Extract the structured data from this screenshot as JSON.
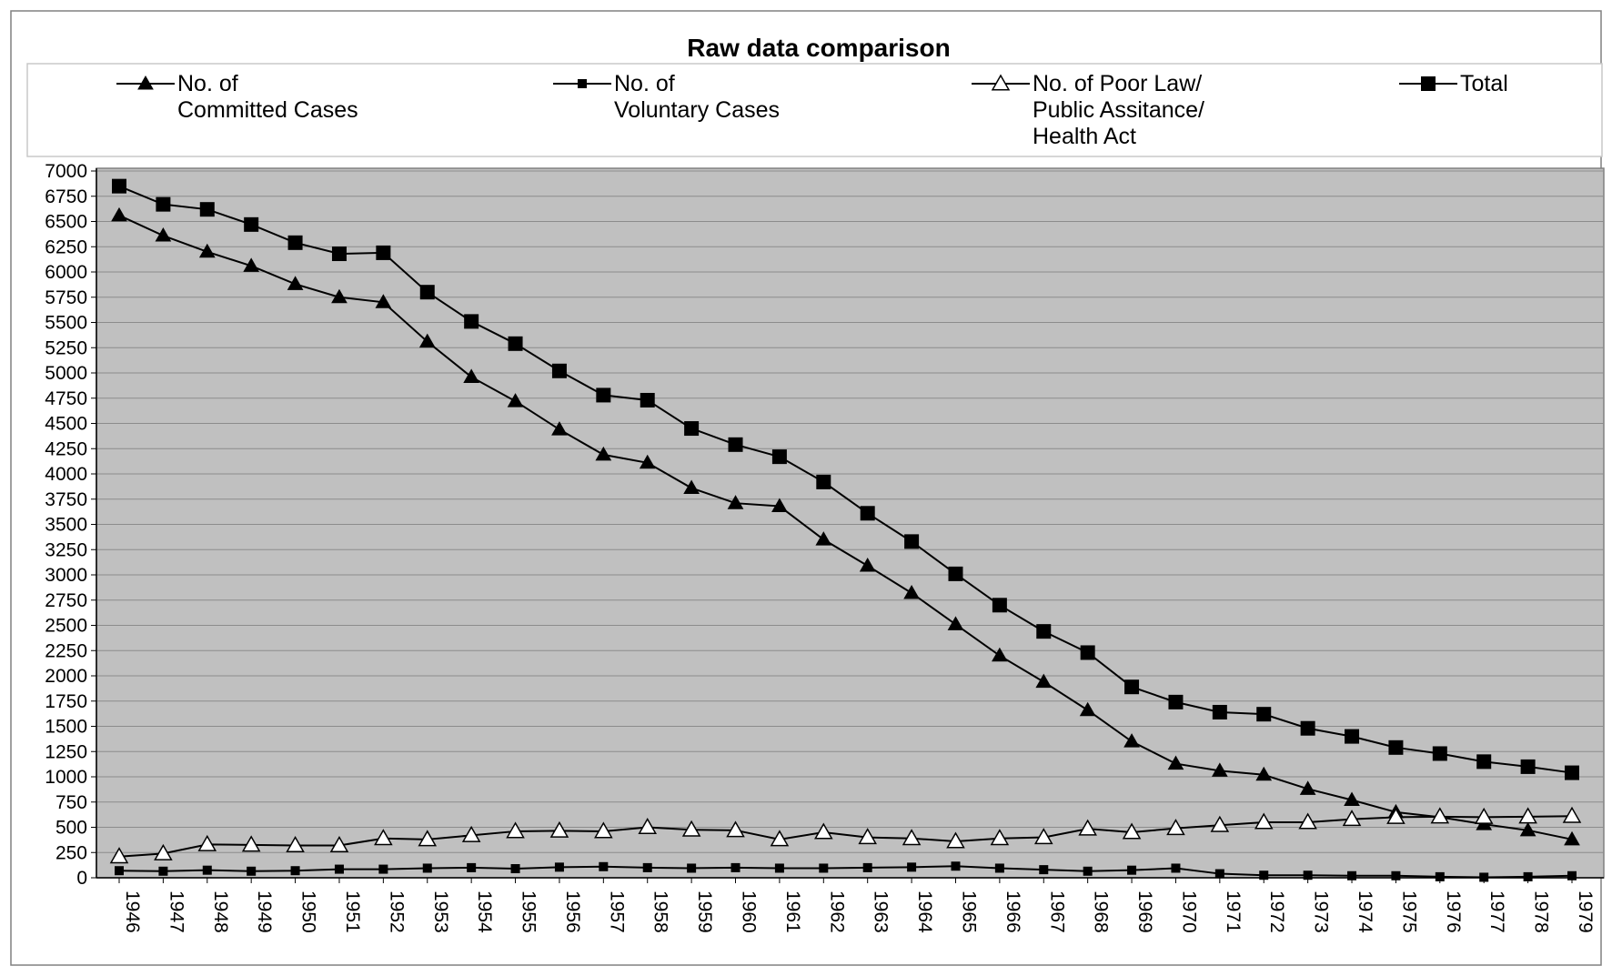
{
  "chart_data": {
    "type": "line",
    "title": "Raw data comparison",
    "xlabel": "",
    "ylabel": "",
    "ylim": [
      0,
      7000
    ],
    "ytick_step": 250,
    "grid": true,
    "legend_position": "top",
    "background_color": "#c0c0c0",
    "categories": [
      "1946",
      "1947",
      "1948",
      "1949",
      "1950",
      "1951",
      "1952",
      "1953",
      "1954",
      "1955",
      "1956",
      "1957",
      "1958",
      "1959",
      "1960",
      "1961",
      "1962",
      "1963",
      "1964",
      "1965",
      "1966",
      "1967",
      "1968",
      "1969",
      "1970",
      "1971",
      "1972",
      "1973",
      "1974",
      "1975",
      "1976",
      "1977",
      "1978",
      "1979"
    ],
    "series": [
      {
        "name_lines": [
          "No. of",
          "Committed Cases"
        ],
        "marker": "triangle-filled",
        "values": [
          6560,
          6360,
          6200,
          6060,
          5880,
          5750,
          5700,
          5310,
          4960,
          4720,
          4440,
          4190,
          4110,
          3860,
          3710,
          3680,
          3350,
          3090,
          2820,
          2510,
          2200,
          1940,
          1660,
          1350,
          1130,
          1060,
          1020,
          880,
          770,
          650,
          600,
          530,
          470,
          380
        ]
      },
      {
        "name_lines": [
          "No. of",
          "Voluntary Cases"
        ],
        "marker": "square-small",
        "values": [
          70,
          65,
          75,
          65,
          70,
          85,
          85,
          95,
          100,
          90,
          105,
          110,
          100,
          95,
          100,
          95,
          95,
          100,
          105,
          115,
          95,
          80,
          65,
          75,
          95,
          40,
          25,
          25,
          20,
          20,
          10,
          5,
          10,
          20
        ]
      },
      {
        "name_lines": [
          "No. of Poor Law/",
          "Public Assitance/",
          "Health Act"
        ],
        "marker": "triangle-hollow",
        "values": [
          210,
          240,
          330,
          325,
          320,
          320,
          390,
          380,
          420,
          460,
          465,
          460,
          500,
          475,
          470,
          380,
          450,
          400,
          390,
          360,
          390,
          400,
          485,
          450,
          490,
          520,
          550,
          550,
          580,
          600,
          605,
          600,
          605,
          610
        ]
      },
      {
        "name_lines": [
          "Total"
        ],
        "marker": "square-large",
        "values": [
          6850,
          6670,
          6620,
          6470,
          6290,
          6180,
          6190,
          5800,
          5510,
          5290,
          5020,
          4780,
          4730,
          4450,
          4290,
          4170,
          3920,
          3610,
          3330,
          3010,
          2700,
          2440,
          2230,
          1890,
          1740,
          1640,
          1620,
          1480,
          1400,
          1290,
          1230,
          1150,
          1100,
          1040
        ]
      }
    ]
  }
}
